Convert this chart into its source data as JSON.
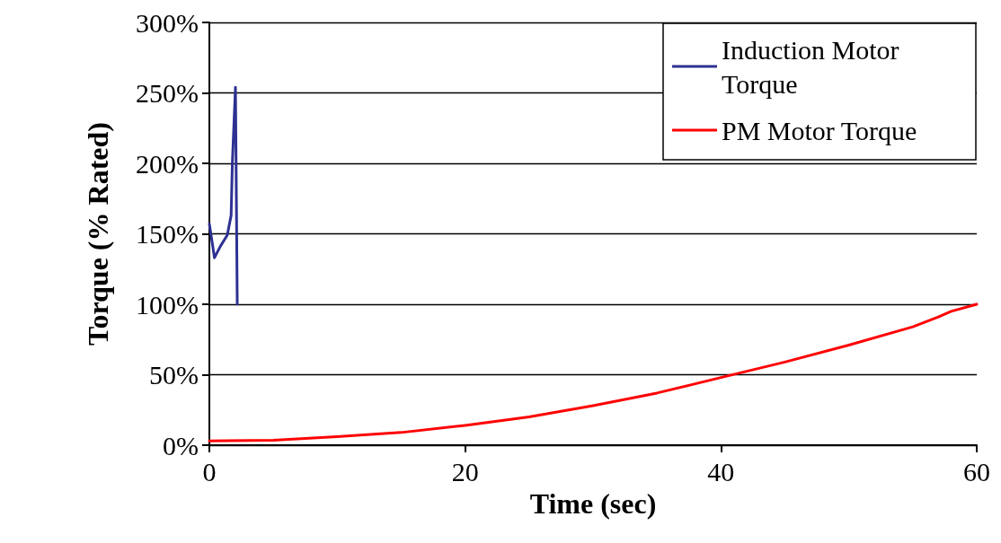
{
  "chart_data": {
    "type": "line",
    "xlabel": "Time (sec)",
    "ylabel": "Torque (% Rated)",
    "xlim": [
      0,
      60
    ],
    "xticks": [
      0,
      20,
      40,
      60
    ],
    "ylim": [
      0,
      300
    ],
    "yticks": [
      {
        "value": 0,
        "label": "0%"
      },
      {
        "value": 50,
        "label": "50%"
      },
      {
        "value": 100,
        "label": "100%"
      },
      {
        "value": 150,
        "label": "150%"
      },
      {
        "value": 200,
        "label": "200%"
      },
      {
        "value": 250,
        "label": "250%"
      },
      {
        "value": 300,
        "label": "300%"
      }
    ],
    "grid": "y",
    "legend": "top right",
    "marker": "none",
    "line_style": "solid",
    "series": [
      {
        "name": "Induction Motor Torque",
        "color": "#2e3192",
        "x": [
          0,
          0.4,
          0.85,
          1.4,
          1.7,
          1.8,
          2.04,
          2.1,
          2.18
        ],
        "values": [
          157,
          133,
          141,
          149,
          163,
          201,
          254,
          189,
          100
        ]
      },
      {
        "name": "PM Motor Torque",
        "color": "#ff0000",
        "x": [
          0,
          5,
          10,
          15,
          20,
          25,
          30,
          35,
          40,
          45,
          50,
          55,
          57,
          58,
          60
        ],
        "values": [
          3,
          3.5,
          6,
          9,
          14,
          20,
          28,
          37,
          48,
          59,
          71,
          84,
          91,
          95,
          100
        ]
      }
    ]
  }
}
